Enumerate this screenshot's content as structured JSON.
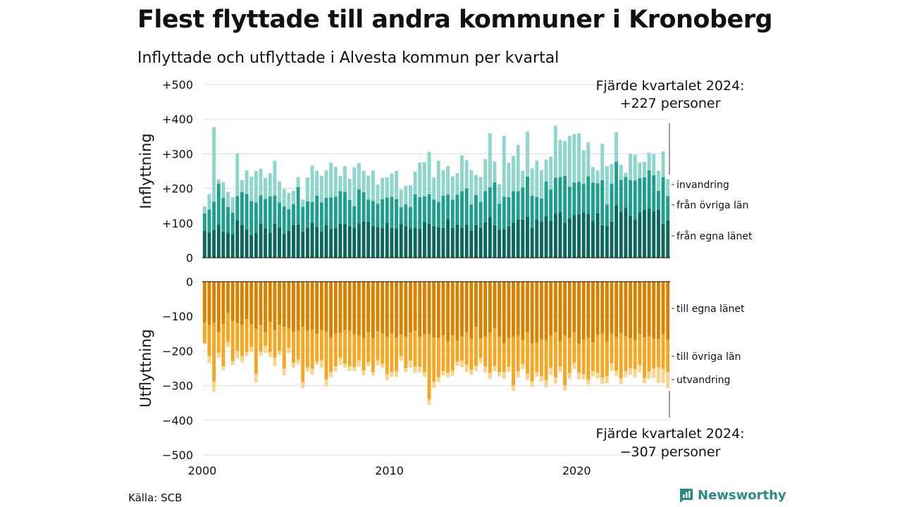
{
  "title": "Flest flyttade till andra kommuner i Kronoberg",
  "subtitle": "Inflyttade och utflyttade i Alvesta kommun per kvartal",
  "source": "Källa: SCB",
  "brand": "Newsworthy",
  "colors": {
    "in_own": "#0b665b",
    "in_other": "#1e9e8c",
    "in_immig": "#8ed6cc",
    "out_own": "#d88200",
    "out_other": "#f5a623",
    "out_emig": "#f9d48b",
    "grid": "#dddddd",
    "brand": "#2a8a80"
  },
  "chart_data": [
    {
      "type": "bar",
      "stacked": true,
      "ylabel": "Inflyttning",
      "ylim": [
        0,
        500
      ],
      "yticks": [
        0,
        100,
        200,
        300,
        400,
        500
      ],
      "ytick_labels": [
        "0",
        "+100",
        "+200",
        "+300",
        "+400",
        "+500"
      ],
      "x_start": "2000 Q1",
      "x_end": "2024 Q4",
      "xticks": [
        2000,
        2010,
        2020
      ],
      "series": [
        {
          "name": "från egna länet",
          "values": [
            78,
            73,
            80,
            96,
            75,
            72,
            68,
            108,
            95,
            82,
            65,
            72,
            98,
            85,
            72,
            98,
            88,
            68,
            78,
            95,
            96,
            75,
            86,
            101,
            89,
            75,
            95,
            84,
            86,
            98,
            98,
            91,
            87,
            99,
            105,
            104,
            92,
            89,
            86,
            101,
            86,
            85,
            98,
            91,
            85,
            87,
            84,
            103,
            98,
            92,
            88,
            86,
            112,
            86,
            96,
            87,
            96,
            79,
            95,
            87,
            102,
            117,
            94,
            81,
            83,
            92,
            102,
            111,
            110,
            118,
            87,
            111,
            105,
            120,
            107,
            127,
            131,
            101,
            114,
            123,
            125,
            130,
            126,
            107,
            128,
            94,
            92,
            104,
            152,
            132,
            144,
            120,
            111,
            131,
            138,
            142,
            134,
            138,
            98,
            108
          ]
        },
        {
          "name": "från övriga län",
          "values": [
            50,
            66,
            82,
            118,
            98,
            75,
            62,
            70,
            94,
            102,
            99,
            88,
            82,
            85,
            105,
            82,
            72,
            80,
            62,
            60,
            108,
            72,
            77,
            60,
            90,
            85,
            78,
            90,
            90,
            94,
            92,
            76,
            62,
            98,
            84,
            64,
            72,
            67,
            83,
            73,
            90,
            84,
            48,
            63,
            61,
            96,
            91,
            74,
            85,
            76,
            73,
            93,
            70,
            82,
            86,
            105,
            104,
            75,
            86,
            74,
            90,
            86,
            124,
            75,
            93,
            83,
            90,
            81,
            93,
            116,
            92,
            64,
            66,
            100,
            90,
            104,
            102,
            135,
            91,
            94,
            94,
            83,
            109,
            110,
            87,
            130,
            62,
            110,
            125,
            93,
            89,
            104,
            112,
            99,
            94,
            110,
            104,
            55,
            135,
            70
          ]
        },
        {
          "name": "invandring",
          "values": [
            20,
            45,
            215,
            12,
            45,
            43,
            45,
            123,
            35,
            68,
            70,
            90,
            77,
            60,
            67,
            100,
            60,
            50,
            47,
            38,
            29,
            21,
            69,
            105,
            72,
            76,
            79,
            101,
            86,
            44,
            75,
            61,
            112,
            76,
            62,
            69,
            88,
            55,
            61,
            58,
            67,
            82,
            51,
            54,
            63,
            66,
            100,
            99,
            123,
            64,
            119,
            73,
            82,
            67,
            62,
            103,
            82,
            99,
            58,
            72,
            92,
            156,
            60,
            56,
            176,
            99,
            102,
            134,
            48,
            130,
            79,
            105,
            82,
            63,
            95,
            150,
            107,
            101,
            147,
            140,
            140,
            97,
            98,
            45,
            37,
            105,
            110,
            56,
            85,
            43,
            12,
            76,
            74,
            45,
            45,
            51,
            61,
            58,
            74,
            49
          ]
        }
      ],
      "annotation": "Fjärde kvartalet 2024:\n+227 personer",
      "total_last": 227
    },
    {
      "type": "bar",
      "stacked": true,
      "ylabel": "Utflyttning",
      "ylim": [
        -500,
        0
      ],
      "yticks": [
        0,
        -100,
        -200,
        -300,
        -400,
        -500
      ],
      "ytick_labels": [
        "0",
        "−100",
        "−200",
        "−300",
        "−400",
        "−500"
      ],
      "x_start": "2000 Q1",
      "x_end": "2024 Q4",
      "xticks": [
        2000,
        2010,
        2020
      ],
      "series": [
        {
          "name": "till egna länet",
          "values": [
            -118,
            -125,
            -118,
            -145,
            -122,
            -90,
            -114,
            -120,
            -125,
            -108,
            -123,
            -136,
            -124,
            -145,
            -116,
            -140,
            -124,
            -130,
            -135,
            -145,
            -142,
            -130,
            -142,
            -138,
            -150,
            -140,
            -145,
            -162,
            -150,
            -148,
            -140,
            -142,
            -152,
            -155,
            -163,
            -146,
            -164,
            -143,
            -150,
            -160,
            -149,
            -162,
            -153,
            -159,
            -148,
            -141,
            -159,
            -153,
            -152,
            -161,
            -163,
            -155,
            -173,
            -155,
            -171,
            -158,
            -146,
            -166,
            -130,
            -163,
            -159,
            -148,
            -134,
            -159,
            -178,
            -163,
            -159,
            -156,
            -169,
            -147,
            -178,
            -175,
            -167,
            -170,
            -156,
            -146,
            -173,
            -156,
            -164,
            -145,
            -179,
            -168,
            -162,
            -175,
            -154,
            -150,
            -173,
            -150,
            -160,
            -148,
            -158,
            -163,
            -168,
            -151,
            -161,
            -158,
            -165,
            -166,
            -152,
            -168
          ]
        },
        {
          "name": "till övriga län",
          "values": [
            -60,
            -90,
            -170,
            -60,
            -122,
            -84,
            -116,
            -80,
            -90,
            -96,
            -65,
            -130,
            -77,
            -40,
            -87,
            -80,
            -76,
            -120,
            -56,
            -89,
            -83,
            -160,
            -105,
            -113,
            -80,
            -87,
            -137,
            -99,
            -94,
            -72,
            -97,
            -102,
            -94,
            -72,
            -93,
            -87,
            -97,
            -84,
            -87,
            -107,
            -111,
            -97,
            -61,
            -91,
            -80,
            -104,
            -87,
            -107,
            -188,
            -128,
            -113,
            -103,
            -90,
            -102,
            -60,
            -71,
            -94,
            -88,
            -113,
            -57,
            -86,
            -115,
            -109,
            -102,
            -82,
            -83,
            -141,
            -103,
            -68,
            -119,
            -110,
            -85,
            -106,
            -115,
            -92,
            -131,
            -72,
            -143,
            -100,
            -89,
            -83,
            -99,
            -121,
            -83,
            -109,
            -127,
            -100,
            -86,
            -97,
            -131,
            -100,
            -86,
            -85,
            -89,
            -117,
            -102,
            -86,
            -81,
            -100,
            -93
          ]
        },
        {
          "name": "utvandring",
          "values": [
            -2,
            -20,
            -30,
            -15,
            -10,
            -15,
            -10,
            -22,
            -18,
            -12,
            -15,
            -25,
            -13,
            -20,
            -15,
            -24,
            -12,
            -20,
            -15,
            -14,
            -12,
            -18,
            -12,
            -17,
            -10,
            -22,
            -20,
            -15,
            -14,
            -20,
            -12,
            -14,
            -12,
            -18,
            -14,
            -11,
            -10,
            -15,
            -12,
            -18,
            -15,
            -16,
            -14,
            -12,
            -20,
            -18,
            -16,
            -15,
            -16,
            -18,
            -14,
            -12,
            -13,
            -15,
            -11,
            -18,
            -20,
            -15,
            -14,
            -16,
            -17,
            -18,
            -15,
            -12,
            -20,
            -14,
            -16,
            -18,
            -15,
            -17,
            -16,
            -14,
            -15,
            -20,
            -22,
            -18,
            -16,
            -15,
            -17,
            -18,
            -20,
            -16,
            -14,
            -15,
            -17,
            -18,
            -20,
            -22,
            -15,
            -17,
            -18,
            -20,
            -24,
            -22,
            -15,
            -20,
            -27,
            -45,
            -40,
            -46
          ]
        }
      ],
      "annotation": "Fjärde kvartalet 2024:\n−307 personer",
      "total_last": -307
    }
  ]
}
